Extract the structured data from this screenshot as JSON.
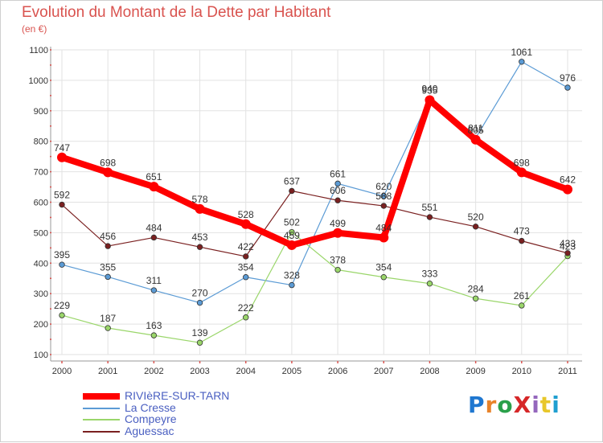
{
  "title": "Evolution du Montant de la Dette par Habitant",
  "subtitle": "(en €)",
  "logo": {
    "text": "ProXiti",
    "colors": [
      "#1f77d0",
      "#e8832a",
      "#2aa04a",
      "#d62728",
      "#9467bd",
      "#e8c72a",
      "#1f9fd0"
    ]
  },
  "chart_data": {
    "type": "line",
    "categories": [
      "2000",
      "2001",
      "2002",
      "2003",
      "2004",
      "2005",
      "2006",
      "2007",
      "2008",
      "2009",
      "2010",
      "2011"
    ],
    "ylim": [
      100,
      1100
    ],
    "yticks": [
      100,
      200,
      300,
      400,
      500,
      600,
      700,
      800,
      900,
      1000,
      1100
    ],
    "grid": true,
    "legend_placement": "bottom-left",
    "series": [
      {
        "name": "RIVIèRE-SUR-TARN",
        "color": "#ff0000",
        "values": [
          747,
          698,
          651,
          578,
          528,
          459,
          499,
          484,
          935,
          805,
          698,
          642
        ]
      },
      {
        "name": "La Cresse",
        "color": "#5b9bd5",
        "values": [
          395,
          355,
          311,
          270,
          354,
          328,
          661,
          620,
          940,
          811,
          1061,
          976
        ]
      },
      {
        "name": "Compeyre",
        "color": "#9ad66a",
        "values": [
          229,
          187,
          163,
          139,
          222,
          502,
          378,
          354,
          333,
          284,
          261,
          423
        ]
      },
      {
        "name": "Aguessac",
        "color": "#7a2020",
        "values": [
          592,
          456,
          484,
          453,
          422,
          637,
          606,
          588,
          551,
          520,
          473,
          433
        ]
      }
    ]
  }
}
